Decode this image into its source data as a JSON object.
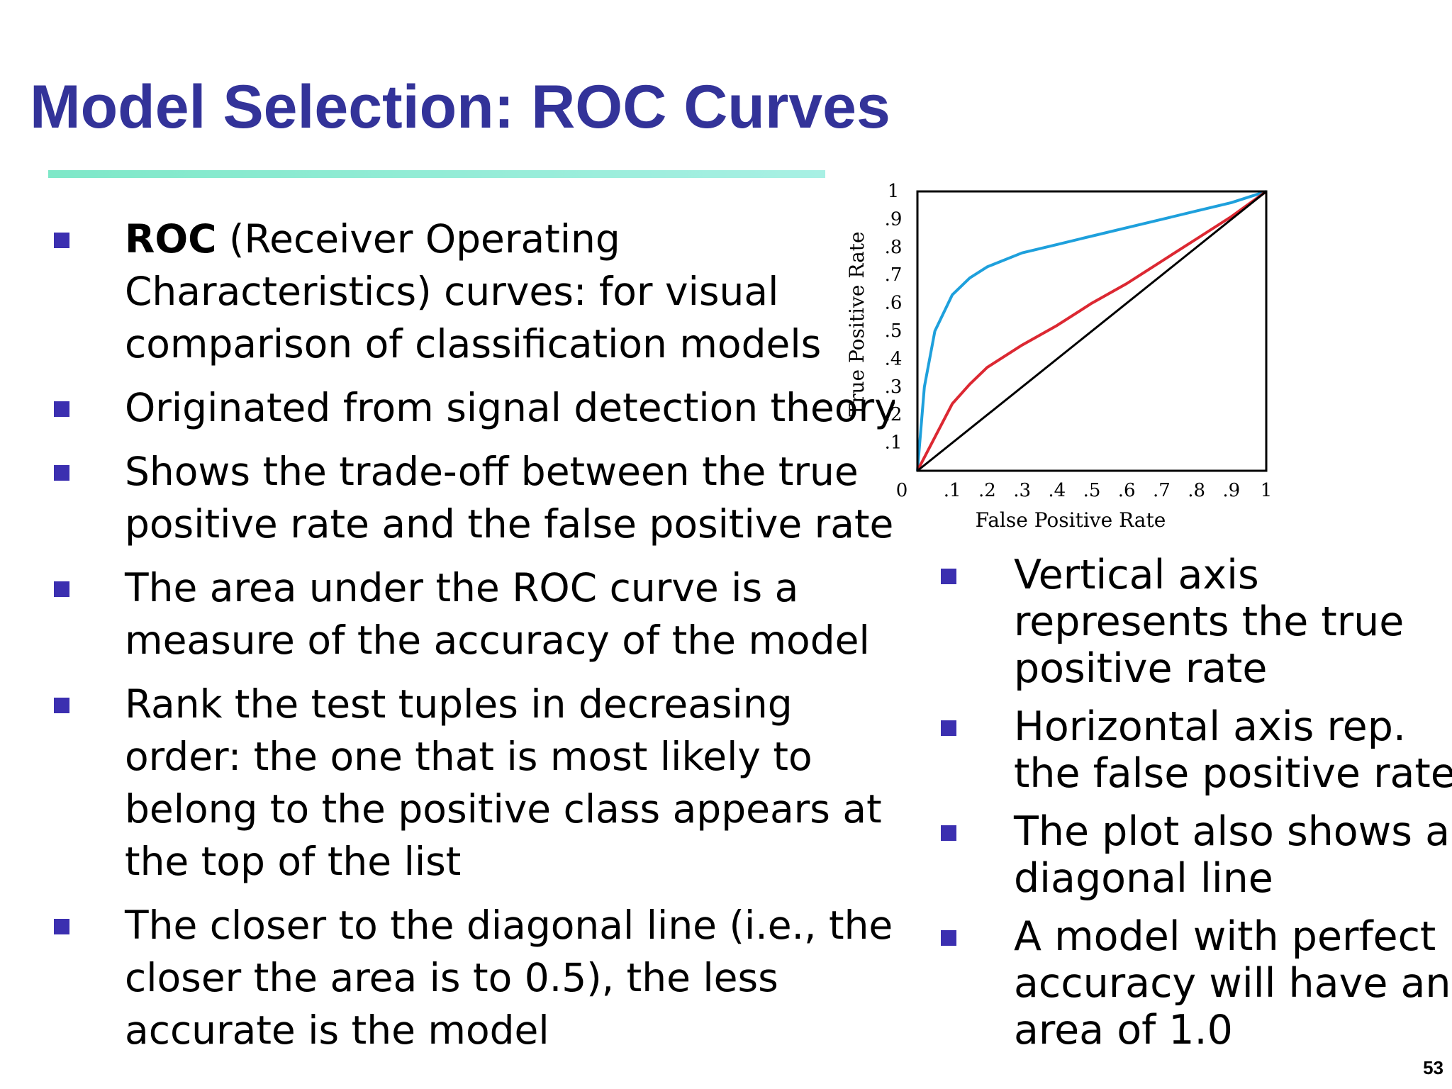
{
  "slide": {
    "title": "Model Selection: ROC Curves",
    "page_number": "53"
  },
  "left_bullets": [
    {
      "bold": "ROC",
      "lines": [
        " (Receiver Operating",
        "Characteristics) curves: for visual",
        "comparison of classification models"
      ]
    },
    {
      "lines": [
        "Originated from signal detection theory"
      ]
    },
    {
      "lines": [
        "Shows the trade-off between the true",
        "positive rate and the false positive rate"
      ]
    },
    {
      "lines": [
        "The area under the ROC curve is a",
        "measure of the accuracy of the model"
      ]
    },
    {
      "lines": [
        "Rank the test tuples in decreasing",
        "order: the one that is most likely to",
        "belong to the positive class appears at",
        "the top of the list"
      ]
    },
    {
      "lines": [
        "The closer to the diagonal line (i.e., the",
        "closer the area is to 0.5), the less",
        "accurate is the model"
      ]
    }
  ],
  "right_bullets": [
    {
      "lines": [
        "Vertical axis",
        "represents the true",
        "positive rate"
      ]
    },
    {
      "lines": [
        "Horizontal axis rep.",
        "the false positive rate"
      ]
    },
    {
      "lines": [
        "The plot also shows a",
        "diagonal line"
      ]
    },
    {
      "lines": [
        "A model with perfect",
        "accuracy will have an",
        "area of 1.0"
      ]
    }
  ],
  "colors": {
    "title": "#333399",
    "bullet": "#3b2fb0",
    "curve_blue": "#1ea0dc",
    "curve_red": "#dc2832",
    "diagonal": "#000000"
  },
  "chart_data": {
    "type": "line",
    "xlabel": "False Positive Rate",
    "ylabel": "True Positive Rate",
    "xlim": [
      0,
      1
    ],
    "ylim": [
      0,
      1
    ],
    "origin_label": "0",
    "x_tick_labels": [
      ".1",
      ".2",
      ".3",
      ".4",
      ".5",
      ".6",
      ".7",
      ".8",
      ".9",
      "1"
    ],
    "y_tick_labels": [
      ".1",
      ".2",
      ".3",
      ".4",
      ".5",
      ".6",
      ".7",
      ".8",
      ".9",
      "1"
    ],
    "x_ticks": [
      0.1,
      0.2,
      0.3,
      0.4,
      0.5,
      0.6,
      0.7,
      0.8,
      0.9,
      1.0
    ],
    "y_ticks": [
      0.1,
      0.2,
      0.3,
      0.4,
      0.5,
      0.6,
      0.7,
      0.8,
      0.9,
      1.0
    ],
    "grid": false,
    "series": [
      {
        "color": "#1ea0dc",
        "x": [
          0,
          0.02,
          0.05,
          0.1,
          0.15,
          0.2,
          0.3,
          0.4,
          0.5,
          0.6,
          0.7,
          0.8,
          0.9,
          1.0
        ],
        "y": [
          0,
          0.3,
          0.5,
          0.63,
          0.69,
          0.73,
          0.78,
          0.81,
          0.84,
          0.87,
          0.9,
          0.93,
          0.96,
          1.0
        ]
      },
      {
        "color": "#dc2832",
        "x": [
          0,
          0.05,
          0.1,
          0.15,
          0.2,
          0.3,
          0.4,
          0.5,
          0.6,
          0.7,
          0.8,
          0.9,
          1.0
        ],
        "y": [
          0,
          0.12,
          0.24,
          0.31,
          0.37,
          0.45,
          0.52,
          0.6,
          0.67,
          0.75,
          0.83,
          0.91,
          1.0
        ]
      },
      {
        "color": "#000000",
        "x": [
          0,
          1
        ],
        "y": [
          0,
          1
        ]
      }
    ]
  }
}
